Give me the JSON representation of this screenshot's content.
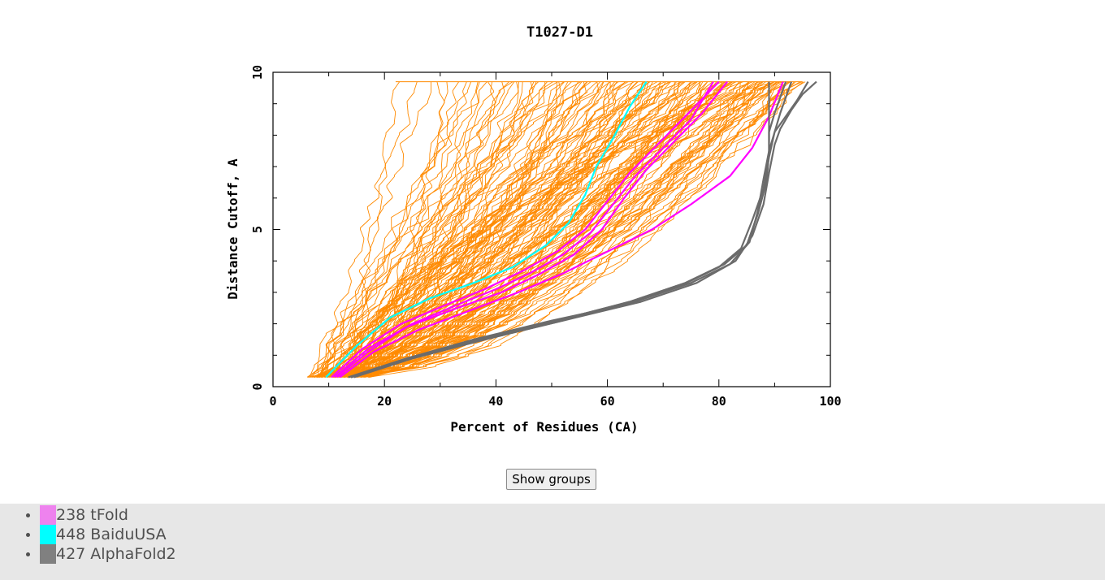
{
  "chart_data": {
    "type": "line",
    "title": "T1027-D1",
    "xlabel": "Percent of Residues (CA)",
    "ylabel": "Distance Cutoff, A",
    "xlim": [
      0,
      100
    ],
    "ylim": [
      0,
      10
    ],
    "x_ticks": [
      0,
      20,
      40,
      60,
      80,
      100
    ],
    "y_ticks": [
      0,
      5,
      10
    ],
    "grid": false,
    "background_series": {
      "name": "",
      "color": "#ff8a00",
      "count": 150,
      "x_range_at_y_start": [
        5,
        22
      ],
      "x_range_at_y_end": [
        22,
        95
      ],
      "y_range": [
        0.3,
        9.7
      ]
    },
    "series": [
      {
        "name": "238 tFold",
        "color": "#ff00ff",
        "lines": [
          {
            "x": [
              11,
              17,
              25,
              33,
              40,
              46,
              52,
              57,
              61,
              65,
              70,
              75,
              79
            ],
            "y": [
              0.3,
              1.2,
              2.0,
              2.6,
              3.1,
              3.6,
              4.2,
              4.9,
              5.8,
              6.7,
              7.6,
              8.5,
              9.7
            ]
          },
          {
            "x": [
              10.5,
              16,
              23,
              31,
              38,
              45,
              51,
              56,
              60,
              64,
              69,
              74,
              80
            ],
            "y": [
              0.3,
              1.2,
              2.0,
              2.6,
              3.1,
              3.7,
              4.3,
              5.0,
              5.9,
              6.8,
              7.7,
              8.6,
              9.7
            ]
          },
          {
            "x": [
              11.5,
              17,
              24,
              33,
              41,
              48,
              54,
              59,
              63,
              67,
              72,
              77,
              81.5
            ],
            "y": [
              0.3,
              1.1,
              1.9,
              2.5,
              3.0,
              3.6,
              4.2,
              5.0,
              6.0,
              6.9,
              7.8,
              8.7,
              9.7
            ]
          },
          {
            "x": [
              12,
              18,
              26,
              35,
              44,
              52,
              60,
              68,
              75,
              82,
              86,
              89,
              91.5
            ],
            "y": [
              0.3,
              1.1,
              1.8,
              2.4,
              3.0,
              3.6,
              4.3,
              5.0,
              5.8,
              6.7,
              7.6,
              8.6,
              9.7
            ]
          }
        ]
      },
      {
        "name": "448 BaiduUSA",
        "color": "#00ffff",
        "lines": [
          {
            "x": [
              9.5,
              15,
              21,
              28,
              36,
              43,
              49,
              53,
              56,
              58,
              61,
              64,
              67
            ],
            "y": [
              0.3,
              1.3,
              2.2,
              2.8,
              3.3,
              3.8,
              4.5,
              5.2,
              6.1,
              7.0,
              7.9,
              8.9,
              9.7
            ]
          }
        ]
      },
      {
        "name": "427 AlphaFold2",
        "color": "#6b6b6b",
        "lines": [
          {
            "x": [
              14,
              25,
              38,
              52,
              65,
              75,
              82,
              85.5,
              87,
              88,
              89,
              90,
              92,
              94,
              96
            ],
            "y": [
              0.3,
              0.9,
              1.5,
              2.1,
              2.7,
              3.3,
              3.9,
              4.6,
              5.6,
              6.6,
              7.5,
              8.1,
              8.6,
              9.1,
              9.7
            ]
          },
          {
            "x": [
              14,
              24,
              36,
              50,
              63,
              73,
              80,
              84,
              86,
              88,
              89,
              90,
              91,
              92,
              93
            ],
            "y": [
              0.3,
              0.9,
              1.5,
              2.1,
              2.6,
              3.2,
              3.8,
              4.4,
              5.3,
              6.3,
              7.3,
              8.1,
              8.7,
              9.2,
              9.7
            ]
          },
          {
            "x": [
              13.5,
              24,
              37,
              51,
              64,
              74,
              81,
              85,
              87,
              88.5,
              89,
              89,
              90,
              91,
              92
            ],
            "y": [
              0.3,
              0.9,
              1.5,
              2.1,
              2.7,
              3.3,
              3.9,
              4.5,
              5.5,
              6.5,
              7.4,
              8.1,
              8.7,
              9.2,
              9.7
            ]
          },
          {
            "x": [
              14.5,
              25,
              38,
              52,
              66,
              76,
              83,
              86,
              88,
              89,
              90,
              91,
              93,
              95,
              97.5
            ],
            "y": [
              0.3,
              0.9,
              1.5,
              2.1,
              2.7,
              3.3,
              4.0,
              4.8,
              5.8,
              6.8,
              7.7,
              8.2,
              8.8,
              9.3,
              9.7
            ]
          },
          {
            "x": [
              14,
              24,
              37,
              51,
              64,
              74,
              81,
              85,
              87,
              88.5,
              89,
              89,
              89,
              89,
              89
            ],
            "y": [
              0.3,
              0.9,
              1.5,
              2.1,
              2.7,
              3.3,
              3.9,
              4.5,
              5.5,
              6.5,
              7.4,
              8.1,
              8.7,
              9.2,
              9.7
            ]
          }
        ]
      }
    ]
  },
  "controls": {
    "show_groups_label": "Show groups"
  },
  "legend": {
    "items": [
      {
        "label": "238 tFold",
        "color": "#ee82ee"
      },
      {
        "label": "448 BaiduUSA",
        "color": "#00ffff"
      },
      {
        "label": "427 AlphaFold2",
        "color": "#808080"
      }
    ]
  }
}
